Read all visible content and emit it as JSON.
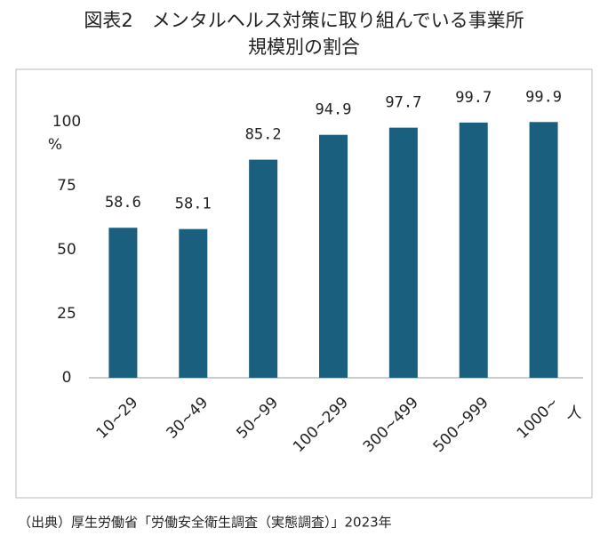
{
  "chart_data": {
    "type": "bar",
    "title": [
      "図表2　メンタルヘルス対策に取り組んでいる事業所",
      "規模別の割合"
    ],
    "categories": [
      "10~29",
      "30~49",
      "50~99",
      "100~299",
      "300~499",
      "500~999",
      "1000~"
    ],
    "values": [
      58.6,
      58.1,
      85.2,
      94.9,
      97.7,
      99.7,
      99.9
    ],
    "color": "#1a5f7e",
    "ylim": [
      0,
      100
    ],
    "yticks": [
      0,
      25,
      50,
      75,
      100
    ],
    "y_unit": "%",
    "x_unit": "人",
    "source": "（出典）厚生労働省「労働安全衛生調査（実態調査）」2023年"
  }
}
